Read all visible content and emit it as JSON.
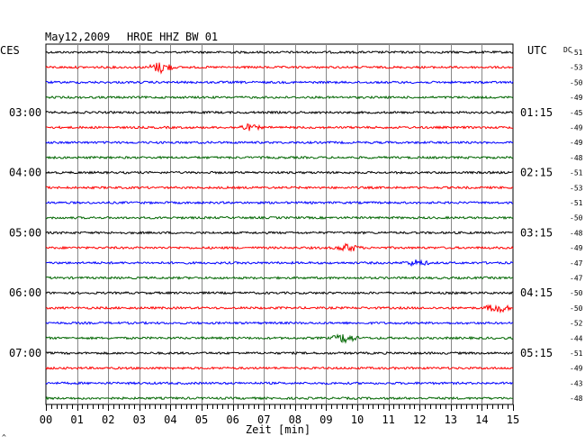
{
  "chart_data": {
    "type": "line",
    "title": "May12,2009",
    "station": "HROE HHZ BW 01",
    "left_timezone": "CES",
    "right_timezone": "UTC",
    "dc_label": "DC",
    "xlabel": "Zeit [min]",
    "x_ticks": [
      "00",
      "01",
      "02",
      "03",
      "04",
      "05",
      "06",
      "07",
      "08",
      "09",
      "10",
      "11",
      "12",
      "13",
      "14",
      "15"
    ],
    "xlim": [
      0,
      15
    ],
    "left_hour_labels": [
      {
        "row": 4,
        "label": "03:00"
      },
      {
        "row": 8,
        "label": "04:00"
      },
      {
        "row": 12,
        "label": "05:00"
      },
      {
        "row": 16,
        "label": "06:00"
      },
      {
        "row": 20,
        "label": "07:00"
      }
    ],
    "right_hour_labels": [
      {
        "row": 4,
        "label": "01:15"
      },
      {
        "row": 8,
        "label": "02:15"
      },
      {
        "row": 12,
        "label": "03:15"
      },
      {
        "row": 16,
        "label": "04:15"
      },
      {
        "row": 20,
        "label": "05:15"
      }
    ],
    "dc_offsets": [
      "-51",
      "-53",
      "-50",
      "-49",
      "-45",
      "-49",
      "-49",
      "-48",
      "-51",
      "-53",
      "-51",
      "-50",
      "-48",
      "-49",
      "-47",
      "-47",
      "-50",
      "-50",
      "-52",
      "-44",
      "-51",
      "-49",
      "-43",
      "-48"
    ],
    "trace_colors": [
      "#000000",
      "#ff0000",
      "#0000ff",
      "#006600"
    ],
    "events": [
      {
        "row": 1,
        "minute": 3.7,
        "amplitude": 6
      },
      {
        "row": 5,
        "minute": 6.5,
        "amplitude": 3
      },
      {
        "row": 13,
        "minute": 9.7,
        "amplitude": 4
      },
      {
        "row": 14,
        "minute": 11.9,
        "amplitude": 3
      },
      {
        "row": 17,
        "minute": 14.5,
        "amplitude": 5
      },
      {
        "row": 19,
        "minute": 9.6,
        "amplitude": 5
      }
    ],
    "grid": true
  },
  "corner_mark": "^"
}
